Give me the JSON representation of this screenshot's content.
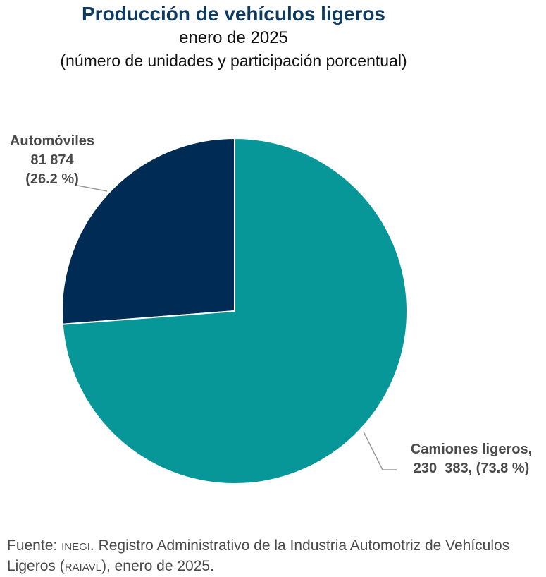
{
  "title": "Producción de vehículos ligeros",
  "subtitle": "enero de 2025",
  "units_note": "(número de unidades y participación porcentual)",
  "chart_data": {
    "type": "pie",
    "title": "Producción de vehículos ligeros",
    "subtitle": "enero de 2025",
    "slices": [
      {
        "name": "Automóviles",
        "value": 81874,
        "percent": 26.2,
        "color": "#002b55",
        "label_lines": [
          "Automóviles",
          "81 874",
          "(26.2 %)"
        ]
      },
      {
        "name": "Camiones ligeros",
        "value": 230383,
        "percent": 73.8,
        "color": "#089799",
        "label_lines": [
          "Camiones ligeros,",
          "230  383, (73.8 %)"
        ]
      }
    ]
  },
  "source": {
    "prefix": "Fuente: ",
    "org": "INEGI",
    "mid": ". Registro Administrativo de la Industria Automotriz de Vehículos Ligeros (",
    "abbr": "RAIAVL",
    "suffix": "), enero de 2025."
  }
}
